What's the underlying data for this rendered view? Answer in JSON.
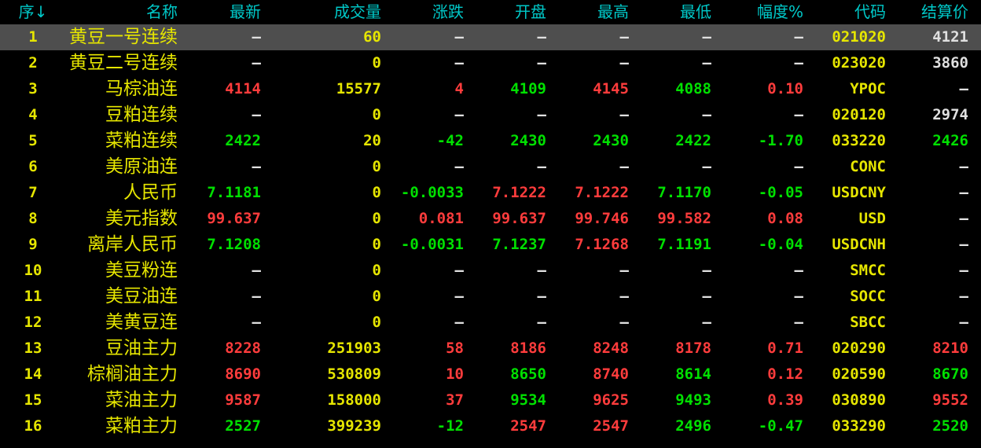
{
  "colors": {
    "header": "#00c8c8",
    "yellow": "#e6e600",
    "red": "#ff3c3c",
    "green": "#00e000",
    "white": "#e0e0e0",
    "selected_row": "#4e4e4e"
  },
  "headers": [
    "序↓",
    "名称",
    "最新",
    "成交量",
    "涨跌",
    "开盘",
    "最高",
    "最低",
    "幅度%",
    "代码",
    "结算价"
  ],
  "sort_icon": "arrow-down-icon",
  "selected_row": 1,
  "rows": [
    {
      "v": [
        "1",
        "黄豆一号连续",
        "—",
        "60",
        "—",
        "—",
        "—",
        "—",
        "—",
        "021020",
        "4121"
      ],
      "c": [
        "w",
        "w",
        "w",
        "w",
        "w",
        "w",
        "w"
      ]
    },
    {
      "v": [
        "2",
        "黄豆二号连续",
        "—",
        "0",
        "—",
        "—",
        "—",
        "—",
        "—",
        "023020",
        "3860"
      ],
      "c": [
        "w",
        "w",
        "w",
        "w",
        "w",
        "w",
        "w"
      ]
    },
    {
      "v": [
        "3",
        "马棕油连",
        "4114",
        "15577",
        "4",
        "4109",
        "4145",
        "4088",
        "0.10",
        "YPOC",
        "—"
      ],
      "c": [
        "r",
        "r",
        "g",
        "r",
        "g",
        "r",
        "w"
      ]
    },
    {
      "v": [
        "4",
        "豆粕连续",
        "—",
        "0",
        "—",
        "—",
        "—",
        "—",
        "—",
        "020120",
        "2974"
      ],
      "c": [
        "w",
        "w",
        "w",
        "w",
        "w",
        "w",
        "w"
      ]
    },
    {
      "v": [
        "5",
        "菜粕连续",
        "2422",
        "20",
        "-42",
        "2430",
        "2430",
        "2422",
        "-1.70",
        "033220",
        "2426"
      ],
      "c": [
        "g",
        "g",
        "g",
        "g",
        "g",
        "g",
        "g"
      ]
    },
    {
      "v": [
        "6",
        "美原油连",
        "—",
        "0",
        "—",
        "—",
        "—",
        "—",
        "—",
        "CONC",
        "—"
      ],
      "c": [
        "w",
        "w",
        "w",
        "w",
        "w",
        "w",
        "w"
      ]
    },
    {
      "v": [
        "7",
        "人民币",
        "7.1181",
        "0",
        "-0.0033",
        "7.1222",
        "7.1222",
        "7.1170",
        "-0.05",
        "USDCNY",
        "—"
      ],
      "c": [
        "g",
        "g",
        "r",
        "r",
        "g",
        "g",
        "w"
      ]
    },
    {
      "v": [
        "8",
        "美元指数",
        "99.637",
        "0",
        "0.081",
        "99.637",
        "99.746",
        "99.582",
        "0.08",
        "USD",
        "—"
      ],
      "c": [
        "r",
        "r",
        "r",
        "r",
        "r",
        "r",
        "w"
      ]
    },
    {
      "v": [
        "9",
        "离岸人民币",
        "7.1208",
        "0",
        "-0.0031",
        "7.1237",
        "7.1268",
        "7.1191",
        "-0.04",
        "USDCNH",
        "—"
      ],
      "c": [
        "g",
        "g",
        "g",
        "r",
        "g",
        "g",
        "w"
      ]
    },
    {
      "v": [
        "10",
        "美豆粉连",
        "—",
        "0",
        "—",
        "—",
        "—",
        "—",
        "—",
        "SMCC",
        "—"
      ],
      "c": [
        "w",
        "w",
        "w",
        "w",
        "w",
        "w",
        "w"
      ]
    },
    {
      "v": [
        "11",
        "美豆油连",
        "—",
        "0",
        "—",
        "—",
        "—",
        "—",
        "—",
        "SOCC",
        "—"
      ],
      "c": [
        "w",
        "w",
        "w",
        "w",
        "w",
        "w",
        "w"
      ]
    },
    {
      "v": [
        "12",
        "美黄豆连",
        "—",
        "0",
        "—",
        "—",
        "—",
        "—",
        "—",
        "SBCC",
        "—"
      ],
      "c": [
        "w",
        "w",
        "w",
        "w",
        "w",
        "w",
        "w"
      ]
    },
    {
      "v": [
        "13",
        "豆油主力",
        "8228",
        "251903",
        "58",
        "8186",
        "8248",
        "8178",
        "0.71",
        "020290",
        "8210"
      ],
      "c": [
        "r",
        "r",
        "r",
        "r",
        "r",
        "r",
        "r"
      ]
    },
    {
      "v": [
        "14",
        "棕榈油主力",
        "8690",
        "530809",
        "10",
        "8650",
        "8740",
        "8614",
        "0.12",
        "020590",
        "8670"
      ],
      "c": [
        "r",
        "r",
        "g",
        "r",
        "g",
        "r",
        "g"
      ]
    },
    {
      "v": [
        "15",
        "菜油主力",
        "9587",
        "158000",
        "37",
        "9534",
        "9625",
        "9493",
        "0.39",
        "030890",
        "9552"
      ],
      "c": [
        "r",
        "r",
        "g",
        "r",
        "g",
        "r",
        "r"
      ]
    },
    {
      "v": [
        "16",
        "菜粕主力",
        "2527",
        "399239",
        "-12",
        "2547",
        "2547",
        "2496",
        "-0.47",
        "033290",
        "2520"
      ],
      "c": [
        "g",
        "g",
        "r",
        "r",
        "g",
        "g",
        "g"
      ]
    }
  ]
}
